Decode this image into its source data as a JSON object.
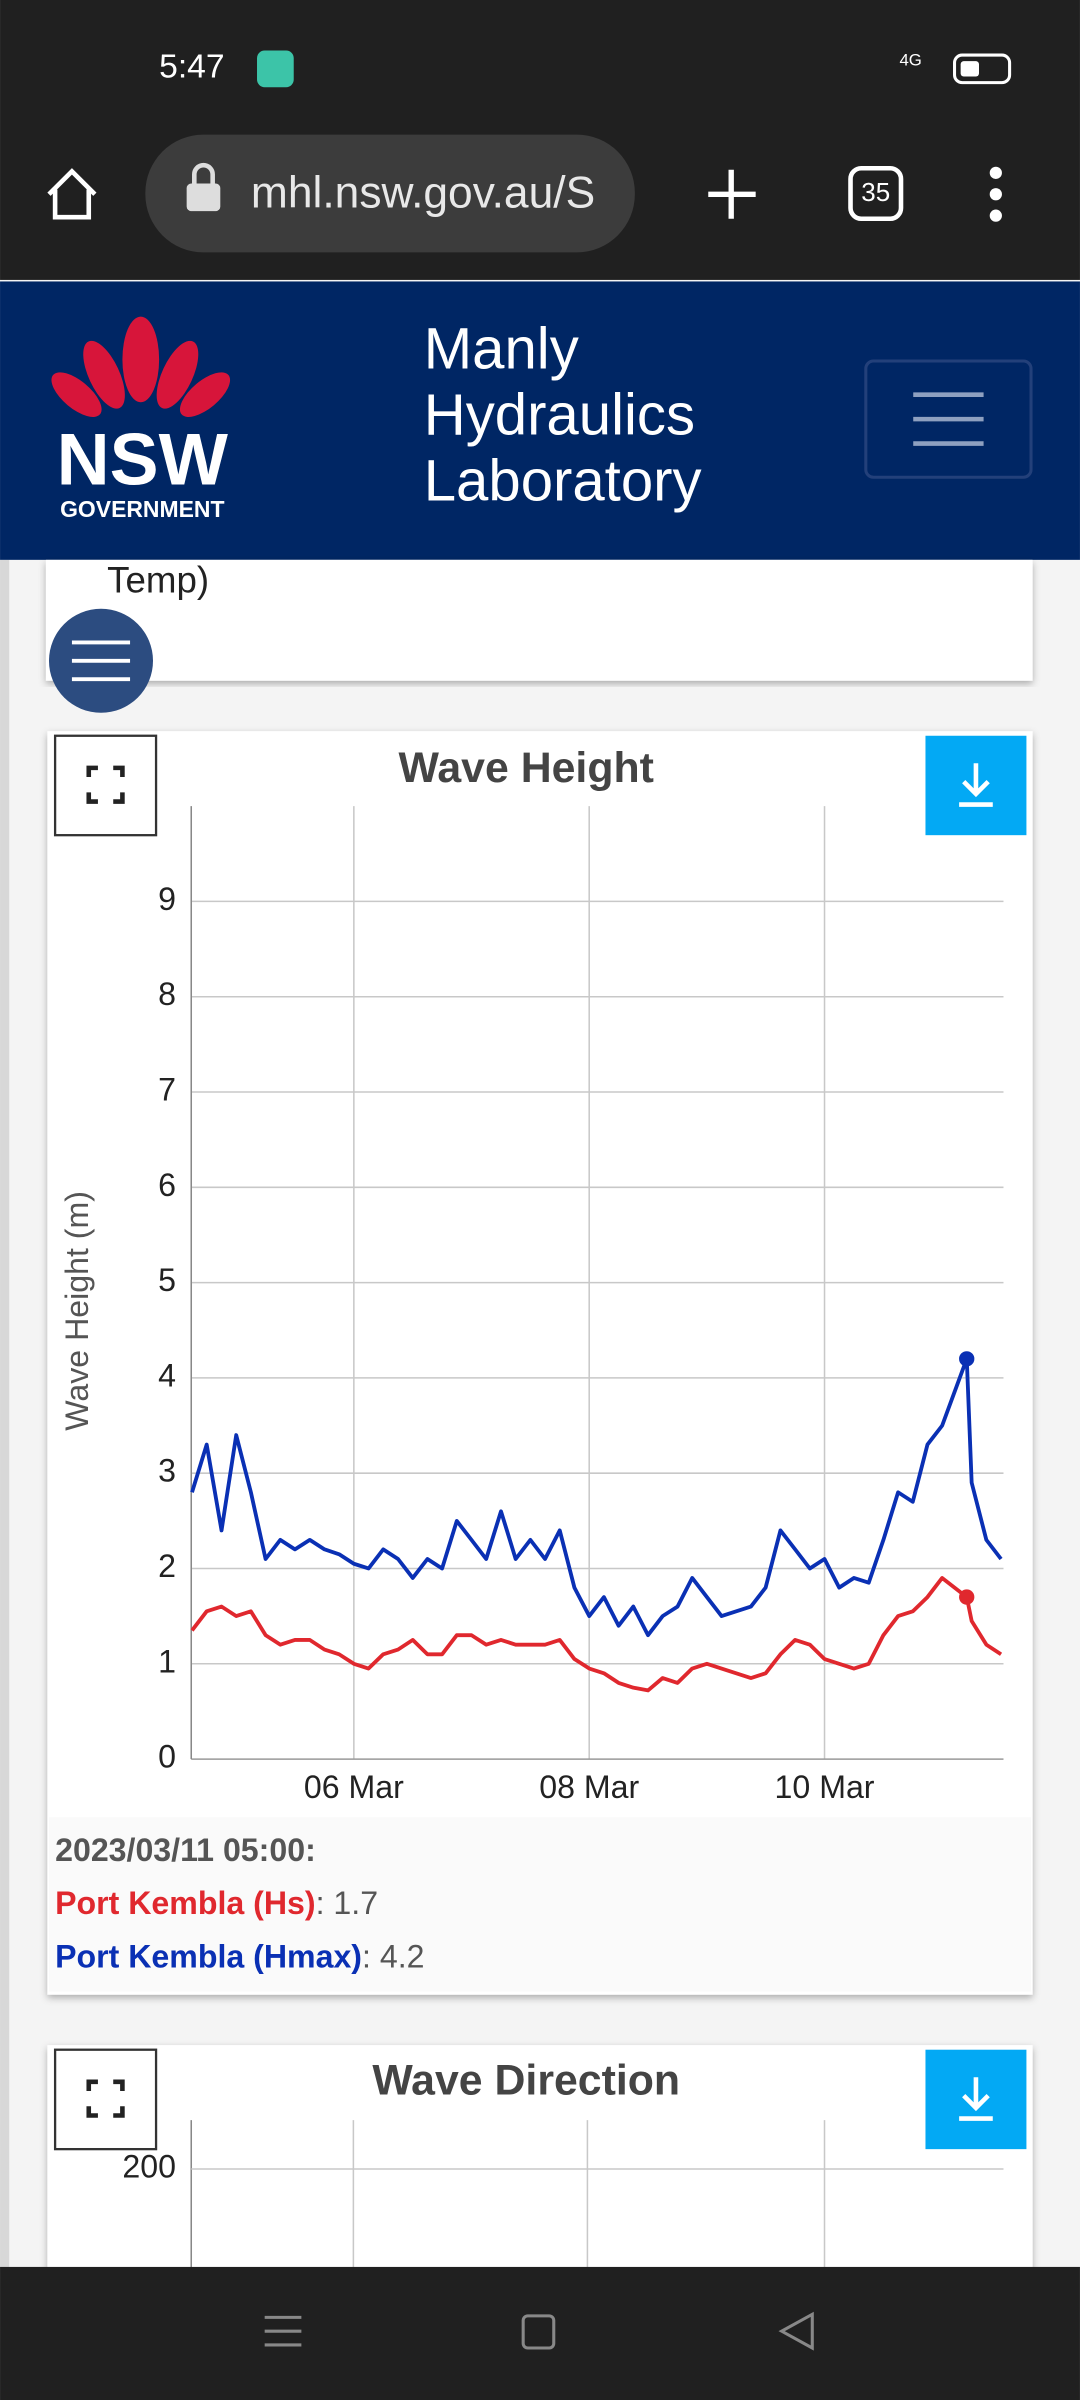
{
  "status_bar": {
    "time": "5:47",
    "network": "4G"
  },
  "browser": {
    "url": "mhl.nsw.gov.au/S",
    "tab_count": 35
  },
  "header": {
    "logo_text": "NSW",
    "logo_subtext": "GOVERNMENT",
    "title_lines": [
      "Manly",
      "Hydraulics",
      "Laboratory"
    ]
  },
  "previous_card": {
    "text": "Temp)"
  },
  "chart_data": [
    {
      "type": "line",
      "title": "Wave Height",
      "y_label": "Wave Height (m)",
      "x": [
        "2023/03/04 15:00",
        "2023/03/04 18:00",
        "2023/03/04 21:00",
        "2023/03/05 00:00",
        "2023/03/05 03:00",
        "2023/03/05 06:00",
        "2023/03/05 09:00",
        "2023/03/05 12:00",
        "2023/03/05 15:00",
        "2023/03/05 18:00",
        "2023/03/05 21:00",
        "2023/03/06 00:00",
        "2023/03/06 03:00",
        "2023/03/06 06:00",
        "2023/03/06 09:00",
        "2023/03/06 12:00",
        "2023/03/06 15:00",
        "2023/03/06 18:00",
        "2023/03/06 21:00",
        "2023/03/07 00:00",
        "2023/03/07 03:00",
        "2023/03/07 06:00",
        "2023/03/07 09:00",
        "2023/03/07 12:00",
        "2023/03/07 15:00",
        "2023/03/07 18:00",
        "2023/03/07 21:00",
        "2023/03/08 00:00",
        "2023/03/08 03:00",
        "2023/03/08 06:00",
        "2023/03/08 09:00",
        "2023/03/08 12:00",
        "2023/03/08 15:00",
        "2023/03/08 18:00",
        "2023/03/08 21:00",
        "2023/03/09 00:00",
        "2023/03/09 03:00",
        "2023/03/09 06:00",
        "2023/03/09 09:00",
        "2023/03/09 12:00",
        "2023/03/09 15:00",
        "2023/03/09 18:00",
        "2023/03/09 21:00",
        "2023/03/10 00:00",
        "2023/03/10 03:00",
        "2023/03/10 06:00",
        "2023/03/10 09:00",
        "2023/03/10 12:00",
        "2023/03/10 15:00",
        "2023/03/10 18:00",
        "2023/03/10 21:00",
        "2023/03/11 00:00",
        "2023/03/11 05:00",
        "2023/03/11 06:00",
        "2023/03/11 09:00",
        "2023/03/11 12:00"
      ],
      "xlim": [
        "2023/03/04 14:50",
        "2023/03/11 12:30"
      ],
      "xticks": [
        {
          "value": "2023/03/06 00:00",
          "label": "06 Mar"
        },
        {
          "value": "2023/03/08 00:00",
          "label": "08 Mar"
        },
        {
          "value": "2023/03/10 00:00",
          "label": "10 Mar"
        }
      ],
      "ylim": [
        0,
        10
      ],
      "yticks": [
        0,
        1,
        2,
        3,
        4,
        5,
        6,
        7,
        8,
        9
      ],
      "grid": true,
      "series": [
        {
          "name": "Port Kembla (Hs)",
          "color": "#e0282e",
          "values": [
            1.35,
            1.55,
            1.6,
            1.5,
            1.55,
            1.3,
            1.2,
            1.25,
            1.25,
            1.15,
            1.1,
            1.0,
            0.95,
            1.1,
            1.15,
            1.25,
            1.1,
            1.1,
            1.3,
            1.3,
            1.2,
            1.25,
            1.2,
            1.2,
            1.2,
            1.25,
            1.05,
            0.95,
            0.9,
            0.8,
            0.75,
            0.72,
            0.85,
            0.8,
            0.95,
            1.0,
            0.95,
            0.9,
            0.85,
            0.9,
            1.1,
            1.25,
            1.2,
            1.05,
            1.0,
            0.95,
            1.0,
            1.3,
            1.5,
            1.55,
            1.7,
            1.9,
            1.7,
            1.45,
            1.2,
            1.1
          ]
        },
        {
          "name": "Port Kembla (Hmax)",
          "color": "#0a30b4",
          "values": [
            2.8,
            3.3,
            2.4,
            3.4,
            2.8,
            2.1,
            2.3,
            2.2,
            2.3,
            2.2,
            2.15,
            2.05,
            2.0,
            2.2,
            2.1,
            1.9,
            2.1,
            2.0,
            2.5,
            2.3,
            2.1,
            2.6,
            2.1,
            2.3,
            2.1,
            2.4,
            1.8,
            1.5,
            1.7,
            1.4,
            1.6,
            1.3,
            1.5,
            1.6,
            1.9,
            1.7,
            1.5,
            1.55,
            1.6,
            1.8,
            2.4,
            2.2,
            2.0,
            2.1,
            1.8,
            1.9,
            1.85,
            2.3,
            2.8,
            2.7,
            3.3,
            3.5,
            4.2,
            2.9,
            2.3,
            2.1
          ]
        }
      ],
      "readout": {
        "time": "2023/03/11 05:00:"
      }
    },
    {
      "type": "line",
      "title": "Wave Direction",
      "yticks": [
        200
      ]
    }
  ]
}
